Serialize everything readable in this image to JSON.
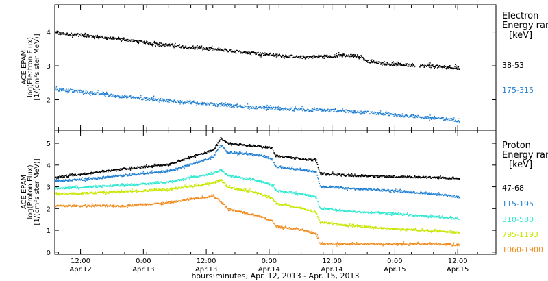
{
  "chart_data": [
    {
      "type": "scatter",
      "panel": "electron",
      "ylabel_lines": [
        "ACE EPAM",
        "log(Electron Flux)",
        "[1/(cm²s ster MeV)]"
      ],
      "ylim": [
        1.1,
        4.8
      ],
      "yticks": [
        2,
        3,
        4
      ],
      "xlim_hours": [
        -7,
        113
      ],
      "legend_title_lines": [
        "Electron",
        "Energy range"
      ],
      "legend_unit": "[keV]",
      "series": [
        {
          "name": "38-53",
          "color": "#000000",
          "points": [
            [
              -7,
              3.98
            ],
            [
              0,
              3.92
            ],
            [
              12,
              3.78
            ],
            [
              24,
              3.62
            ],
            [
              36,
              3.5
            ],
            [
              48,
              3.38
            ],
            [
              60,
              3.27
            ],
            [
              72,
              3.32
            ],
            [
              76,
              3.3
            ],
            [
              78,
              3.15
            ],
            [
              84,
              3.06
            ],
            [
              96,
              3.0
            ],
            [
              103,
              2.95
            ]
          ],
          "gaps": [
            [
              91,
              92
            ]
          ]
        },
        {
          "name": "175-315",
          "color": "#1f7fd2",
          "points": [
            [
              -7,
              2.33
            ],
            [
              0,
              2.25
            ],
            [
              12,
              2.1
            ],
            [
              24,
              1.98
            ],
            [
              36,
              1.88
            ],
            [
              48,
              1.78
            ],
            [
              60,
              1.72
            ],
            [
              72,
              1.68
            ],
            [
              84,
              1.58
            ],
            [
              96,
              1.48
            ],
            [
              103,
              1.4
            ]
          ],
          "gaps": []
        }
      ]
    },
    {
      "type": "scatter",
      "panel": "proton",
      "ylabel_lines": [
        "ACE EPAM",
        "log(Proton Flux)",
        "[1/(cm²s ster MeV)]"
      ],
      "ylim": [
        -0.1,
        5.6
      ],
      "yticks": [
        0,
        1,
        2,
        3,
        4,
        5
      ],
      "xlim_hours": [
        -7,
        113
      ],
      "xticks": [
        {
          "hours": 0,
          "time": "12:00",
          "date": "Apr.12"
        },
        {
          "hours": 12,
          "time": "0:00",
          "date": "Apr.13"
        },
        {
          "hours": 24,
          "time": "12:00",
          "date": "Apr.13"
        },
        {
          "hours": 36,
          "time": "0:00",
          "date": "Apr.14"
        },
        {
          "hours": 48,
          "time": "12:00",
          "date": "Apr.14"
        },
        {
          "hours": 60,
          "time": "0:00",
          "date": "Apr.15"
        },
        {
          "hours": 72,
          "time": "12:00",
          "date": "Apr.15"
        }
      ],
      "legend_title_lines": [
        "Proton",
        "Energy range"
      ],
      "legend_unit": "[keV]",
      "series": [
        {
          "name": "47-68",
          "color": "#000000",
          "points": [
            [
              -7,
              3.45
            ],
            [
              0,
              3.6
            ],
            [
              12,
              3.85
            ],
            [
              24,
              4.05
            ],
            [
              30,
              4.4
            ],
            [
              36,
              4.7
            ],
            [
              38,
              5.25
            ],
            [
              40,
              5.0
            ],
            [
              48,
              4.9
            ],
            [
              52,
              4.8
            ],
            [
              53,
              4.45
            ],
            [
              60,
              4.3
            ],
            [
              64,
              4.25
            ],
            [
              65,
              3.65
            ],
            [
              72,
              3.55
            ],
            [
              84,
              3.5
            ],
            [
              96,
              3.45
            ],
            [
              103,
              3.4
            ]
          ],
          "gaps": []
        },
        {
          "name": "115-195",
          "color": "#1f7fd2",
          "points": [
            [
              -7,
              3.3
            ],
            [
              0,
              3.35
            ],
            [
              12,
              3.55
            ],
            [
              24,
              3.75
            ],
            [
              30,
              4.05
            ],
            [
              36,
              4.4
            ],
            [
              38,
              4.95
            ],
            [
              40,
              4.6
            ],
            [
              48,
              4.5
            ],
            [
              52,
              4.3
            ],
            [
              53,
              3.95
            ],
            [
              60,
              3.8
            ],
            [
              64,
              3.7
            ],
            [
              65,
              3.05
            ],
            [
              72,
              2.95
            ],
            [
              84,
              2.85
            ],
            [
              96,
              2.7
            ],
            [
              103,
              2.55
            ]
          ],
          "gaps": []
        },
        {
          "name": "310-580",
          "color": "#2ee8d0",
          "points": [
            [
              -7,
              2.95
            ],
            [
              0,
              3.0
            ],
            [
              12,
              3.1
            ],
            [
              24,
              3.25
            ],
            [
              30,
              3.45
            ],
            [
              36,
              3.65
            ],
            [
              38,
              3.8
            ],
            [
              40,
              3.55
            ],
            [
              48,
              3.3
            ],
            [
              52,
              3.1
            ],
            [
              53,
              2.85
            ],
            [
              60,
              2.7
            ],
            [
              64,
              2.55
            ],
            [
              65,
              2.05
            ],
            [
              72,
              1.9
            ],
            [
              84,
              1.8
            ],
            [
              96,
              1.65
            ],
            [
              103,
              1.55
            ]
          ],
          "gaps": []
        },
        {
          "name": "795-1193",
          "color": "#c8e600",
          "points": [
            [
              -7,
              2.7
            ],
            [
              0,
              2.72
            ],
            [
              12,
              2.8
            ],
            [
              24,
              2.9
            ],
            [
              30,
              3.05
            ],
            [
              36,
              3.2
            ],
            [
              38,
              3.35
            ],
            [
              40,
              3.0
            ],
            [
              48,
              2.75
            ],
            [
              52,
              2.5
            ],
            [
              53,
              2.25
            ],
            [
              60,
              2.05
            ],
            [
              64,
              1.85
            ],
            [
              65,
              1.4
            ],
            [
              72,
              1.25
            ],
            [
              84,
              1.1
            ],
            [
              96,
              1.0
            ],
            [
              103,
              0.9
            ]
          ],
          "gaps": []
        },
        {
          "name": "1060-1900",
          "color": "#f08c1e",
          "points": [
            [
              -7,
              2.15
            ],
            [
              0,
              2.15
            ],
            [
              12,
              2.15
            ],
            [
              24,
              2.3
            ],
            [
              30,
              2.45
            ],
            [
              36,
              2.6
            ],
            [
              38,
              2.35
            ],
            [
              40,
              2.0
            ],
            [
              48,
              1.7
            ],
            [
              52,
              1.45
            ],
            [
              53,
              1.2
            ],
            [
              60,
              1.05
            ],
            [
              64,
              0.85
            ],
            [
              65,
              0.4
            ],
            [
              72,
              0.4
            ],
            [
              84,
              0.4
            ],
            [
              96,
              0.4
            ],
            [
              103,
              0.35
            ]
          ],
          "gaps": []
        }
      ]
    }
  ],
  "xlabel": "hours:minutes, Apr. 12, 2013 - Apr. 15, 2013",
  "colors": {
    "frame": "#000000",
    "background": "#ffffff"
  }
}
